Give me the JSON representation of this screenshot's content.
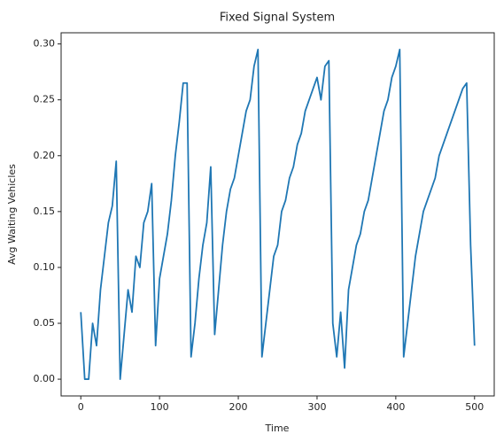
{
  "chart_data": {
    "type": "line",
    "title": "Fixed Signal System",
    "x_label": "Time",
    "y_label": "Avg Waiting Vehicles",
    "x": [
      0,
      5,
      10,
      15,
      20,
      25,
      30,
      35,
      40,
      45,
      50,
      55,
      60,
      65,
      70,
      75,
      80,
      85,
      90,
      95,
      100,
      105,
      110,
      115,
      120,
      125,
      130,
      135,
      140,
      145,
      150,
      155,
      160,
      165,
      170,
      175,
      180,
      185,
      190,
      195,
      200,
      205,
      210,
      215,
      220,
      225,
      230,
      235,
      240,
      245,
      250,
      255,
      260,
      265,
      270,
      275,
      280,
      285,
      290,
      295,
      300,
      305,
      310,
      315,
      320,
      325,
      330,
      335,
      340,
      345,
      350,
      355,
      360,
      365,
      370,
      375,
      380,
      385,
      390,
      395,
      400,
      405,
      410,
      415,
      420,
      425,
      430,
      435,
      440,
      445,
      450,
      455,
      460,
      465,
      470,
      475,
      480,
      485,
      490,
      495,
      500
    ],
    "series": [
      {
        "name": "Avg Waiting Vehicles",
        "color": "#1f77b4",
        "values": [
          0.06,
          0.0,
          0.0,
          0.05,
          0.03,
          0.08,
          0.11,
          0.14,
          0.155,
          0.195,
          0.0,
          0.04,
          0.08,
          0.06,
          0.11,
          0.1,
          0.14,
          0.15,
          0.175,
          0.03,
          0.09,
          0.11,
          0.13,
          0.16,
          0.2,
          0.23,
          0.265,
          0.265,
          0.02,
          0.05,
          0.09,
          0.12,
          0.14,
          0.19,
          0.04,
          0.08,
          0.12,
          0.15,
          0.17,
          0.18,
          0.2,
          0.22,
          0.24,
          0.25,
          0.28,
          0.295,
          0.02,
          0.05,
          0.08,
          0.11,
          0.12,
          0.15,
          0.16,
          0.18,
          0.19,
          0.21,
          0.22,
          0.24,
          0.25,
          0.26,
          0.27,
          0.25,
          0.28,
          0.285,
          0.05,
          0.02,
          0.06,
          0.01,
          0.08,
          0.1,
          0.12,
          0.13,
          0.15,
          0.16,
          0.18,
          0.2,
          0.22,
          0.24,
          0.25,
          0.27,
          0.28,
          0.295,
          0.02,
          0.05,
          0.08,
          0.11,
          0.13,
          0.15,
          0.16,
          0.17,
          0.18,
          0.2,
          0.21,
          0.22,
          0.23,
          0.24,
          0.25,
          0.26,
          0.265,
          0.12,
          0.03
        ]
      }
    ],
    "xlim": [
      -25,
      525
    ],
    "xticks": [
      0,
      100,
      200,
      300,
      400,
      500
    ],
    "ylim": [
      -0.015,
      0.31
    ],
    "yticks": [
      {
        "value": 0,
        "label": "0.00"
      },
      {
        "value": 0.05,
        "label": "0.05"
      },
      {
        "value": 0.1,
        "label": "0.10"
      },
      {
        "value": 0.15,
        "label": "0.15"
      },
      {
        "value": 0.2,
        "label": "0.20"
      },
      {
        "value": 0.25,
        "label": "0.25"
      },
      {
        "value": 0.3,
        "label": "0.30"
      }
    ]
  }
}
